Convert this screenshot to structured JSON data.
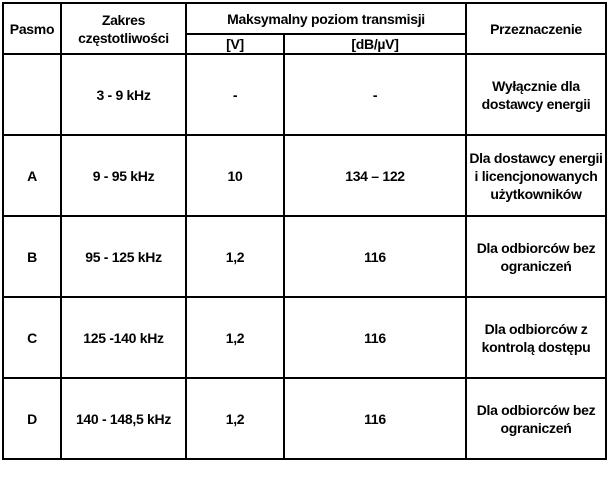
{
  "headers": {
    "pasmo": "Pasmo",
    "zakres": "Zakres częstotliwości",
    "maks": "Maksymalny poziom transmisji",
    "unit_v": "[V]",
    "unit_db": "[dB/µV]",
    "przeznaczenie": "Przeznaczenie"
  },
  "rows": [
    {
      "pasmo": "",
      "zakres": "3 - 9 kHz",
      "v": "-",
      "db": "-",
      "przeznaczenie": "Wyłącznie dla dostawcy energii"
    },
    {
      "pasmo": "A",
      "zakres": "9 - 95 kHz",
      "v": "10",
      "db": "134 – 122",
      "przeznaczenie": "Dla dostawcy energii i licencjonowanych użytkowników"
    },
    {
      "pasmo": "B",
      "zakres": "95 - 125 kHz",
      "v": "1,2",
      "db": "116",
      "przeznaczenie": "Dla odbiorców bez ograniczeń"
    },
    {
      "pasmo": "C",
      "zakres": "125 -140 kHz",
      "v": "1,2",
      "db": "116",
      "przeznaczenie": "Dla odbiorców z kontrolą dostępu"
    },
    {
      "pasmo": "D",
      "zakres": "140 - 148,5 kHz",
      "v": "1,2",
      "db": "116",
      "przeznaczenie": "Dla odbiorców bez ograniczeń"
    }
  ]
}
